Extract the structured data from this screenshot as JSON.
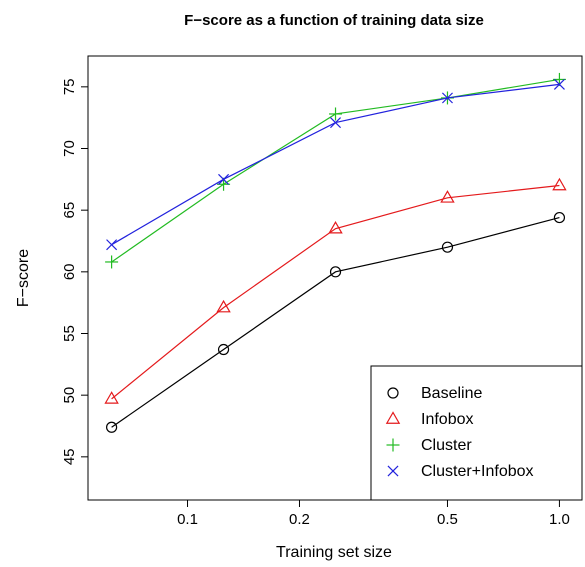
{
  "chart_data": {
    "type": "line",
    "title": "F−score as a function of training data size",
    "xlabel": "Training set size",
    "ylabel": "F−score",
    "x_scale": "log",
    "x": [
      0.0625,
      0.125,
      0.25,
      0.5,
      1.0
    ],
    "x_ticks": [
      0.1,
      0.2,
      0.5,
      1.0
    ],
    "x_tick_labels": [
      "0.1",
      "0.2",
      "0.5",
      "1.0"
    ],
    "xlim": [
      0.054,
      1.15
    ],
    "ylim": [
      41.5,
      77.5
    ],
    "y_ticks": [
      45,
      50,
      55,
      60,
      65,
      70,
      75
    ],
    "y_tick_labels": [
      "45",
      "50",
      "55",
      "60",
      "65",
      "70",
      "75"
    ],
    "grid": false,
    "legend_position": "bottom-right",
    "series": [
      {
        "name": "Baseline",
        "marker": "circle",
        "color": "#000000",
        "values": [
          47.4,
          53.7,
          60.0,
          62.0,
          64.4
        ]
      },
      {
        "name": "Infobox",
        "marker": "triangle",
        "color": "#e41a1c",
        "values": [
          49.7,
          57.1,
          63.5,
          66.0,
          67.0
        ]
      },
      {
        "name": "Cluster",
        "marker": "plus",
        "color": "#22bb22",
        "values": [
          60.8,
          67.1,
          72.8,
          74.1,
          75.6
        ]
      },
      {
        "name": "Cluster+Infobox",
        "marker": "cross",
        "color": "#2222dd",
        "values": [
          62.2,
          67.5,
          72.1,
          74.1,
          75.2
        ]
      }
    ]
  }
}
